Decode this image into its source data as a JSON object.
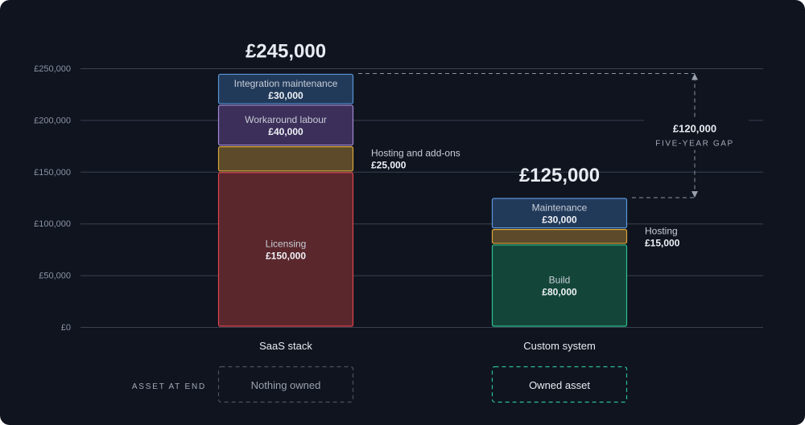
{
  "chart_data": {
    "type": "bar",
    "stacked": true,
    "categories": [
      "SaaS stack",
      "Custom system"
    ],
    "ylim": [
      0,
      250000
    ],
    "yticks": [
      0,
      50000,
      100000,
      150000,
      200000,
      250000
    ],
    "ytick_labels": [
      "£0",
      "£50,000",
      "£100,000",
      "£150,000",
      "£200,000",
      "£250,000"
    ],
    "grid": true,
    "bars": [
      {
        "category": "SaaS stack",
        "total_label": "£245,000",
        "segments": [
          {
            "label": "Licensing",
            "value": 150000,
            "value_label": "£150,000",
            "fill": "#5a272d",
            "stroke": "#e0444e",
            "label_position": "inside"
          },
          {
            "label": "Hosting and add-ons",
            "value": 25000,
            "value_label": "£25,000",
            "fill": "#5c4a2a",
            "stroke": "#d9a73a",
            "label_position": "outside"
          },
          {
            "label": "Workaround labour",
            "value": 40000,
            "value_label": "£40,000",
            "fill": "#3c2f5a",
            "stroke": "#a48ad6",
            "label_position": "inside"
          },
          {
            "label": "Integration maintenance",
            "value": 30000,
            "value_label": "£30,000",
            "fill": "#223a5a",
            "stroke": "#5b95d8",
            "label_position": "inside"
          }
        ]
      },
      {
        "category": "Custom system",
        "total_label": "£125,000",
        "segments": [
          {
            "label": "Build",
            "value": 80000,
            "value_label": "£80,000",
            "fill": "#134639",
            "stroke": "#2fbf8e",
            "label_position": "inside"
          },
          {
            "label": "Hosting",
            "value": 15000,
            "value_label": "£15,000",
            "fill": "#5c4a2a",
            "stroke": "#d9a73a",
            "label_position": "outside"
          },
          {
            "label": "Maintenance",
            "value": 30000,
            "value_label": "£30,000",
            "fill": "#223a5a",
            "stroke": "#5b95d8",
            "label_position": "inside"
          }
        ]
      }
    ],
    "annotation": {
      "from": 125000,
      "to": 245000,
      "value_label": "£120,000",
      "label": "FIVE-YEAR GAP",
      "color": "#8b93a3"
    },
    "asset_row": {
      "label": "ASSET AT END",
      "items": [
        {
          "category": "SaaS stack",
          "text": "Nothing owned",
          "border": "#4a5160"
        },
        {
          "category": "Custom system",
          "text": "Owned asset",
          "border": "#2fbf8e"
        }
      ]
    }
  }
}
